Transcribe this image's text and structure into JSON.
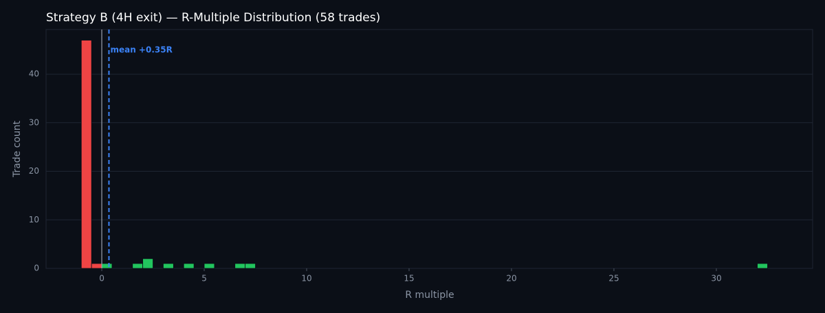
{
  "chart_data": {
    "type": "histogram",
    "title": "Strategy B (4H exit) — R-Multiple Distribution (58 trades)",
    "xlabel": "R multiple",
    "ylabel": "Trade count",
    "bins": [
      -1,
      -0.5,
      0,
      0.5,
      1,
      1.5,
      2,
      2.5,
      3,
      3.5,
      4,
      4.5,
      5,
      5.5,
      6,
      6.5,
      7,
      7.5,
      8,
      8.5,
      9,
      9.5,
      10,
      10.5,
      11,
      11.5,
      12,
      12.5,
      13,
      13.5,
      14,
      14.5,
      15,
      15.5,
      16,
      16.5,
      17,
      17.5,
      18,
      18.5,
      19,
      19.5,
      20,
      20.5,
      21,
      21.5,
      22,
      22.5,
      23,
      23.5,
      24,
      24.5,
      25,
      25.5,
      26,
      26.5,
      27,
      27.5,
      28,
      28.5,
      29,
      29.5,
      30,
      30.5,
      31,
      31.5,
      32,
      32.5
    ],
    "counts": [
      47,
      1,
      1,
      0,
      0,
      1,
      2,
      0,
      1,
      0,
      1,
      0,
      1,
      0,
      0,
      1,
      1,
      0,
      0,
      0,
      0,
      0,
      0,
      0,
      0,
      0,
      0,
      0,
      0,
      0,
      0,
      0,
      0,
      0,
      0,
      0,
      0,
      0,
      0,
      0,
      0,
      0,
      0,
      0,
      0,
      0,
      0,
      0,
      0,
      0,
      0,
      0,
      0,
      0,
      0,
      0,
      0,
      0,
      0,
      0,
      0,
      0,
      0,
      0,
      0,
      0,
      1
    ],
    "negative_color": "#ef4444",
    "positive_color": "#22c55e",
    "zero_line": 0,
    "mean": {
      "value": 0.35,
      "label": "mean +0.35R",
      "color": "#3b82f6"
    },
    "xlim": [
      -2.72,
      34.7
    ],
    "ylim": [
      0,
      49.2
    ],
    "xticks": [
      0,
      5,
      10,
      15,
      20,
      25,
      30
    ],
    "yticks": [
      0,
      10,
      20,
      30,
      40
    ],
    "grid": true
  }
}
